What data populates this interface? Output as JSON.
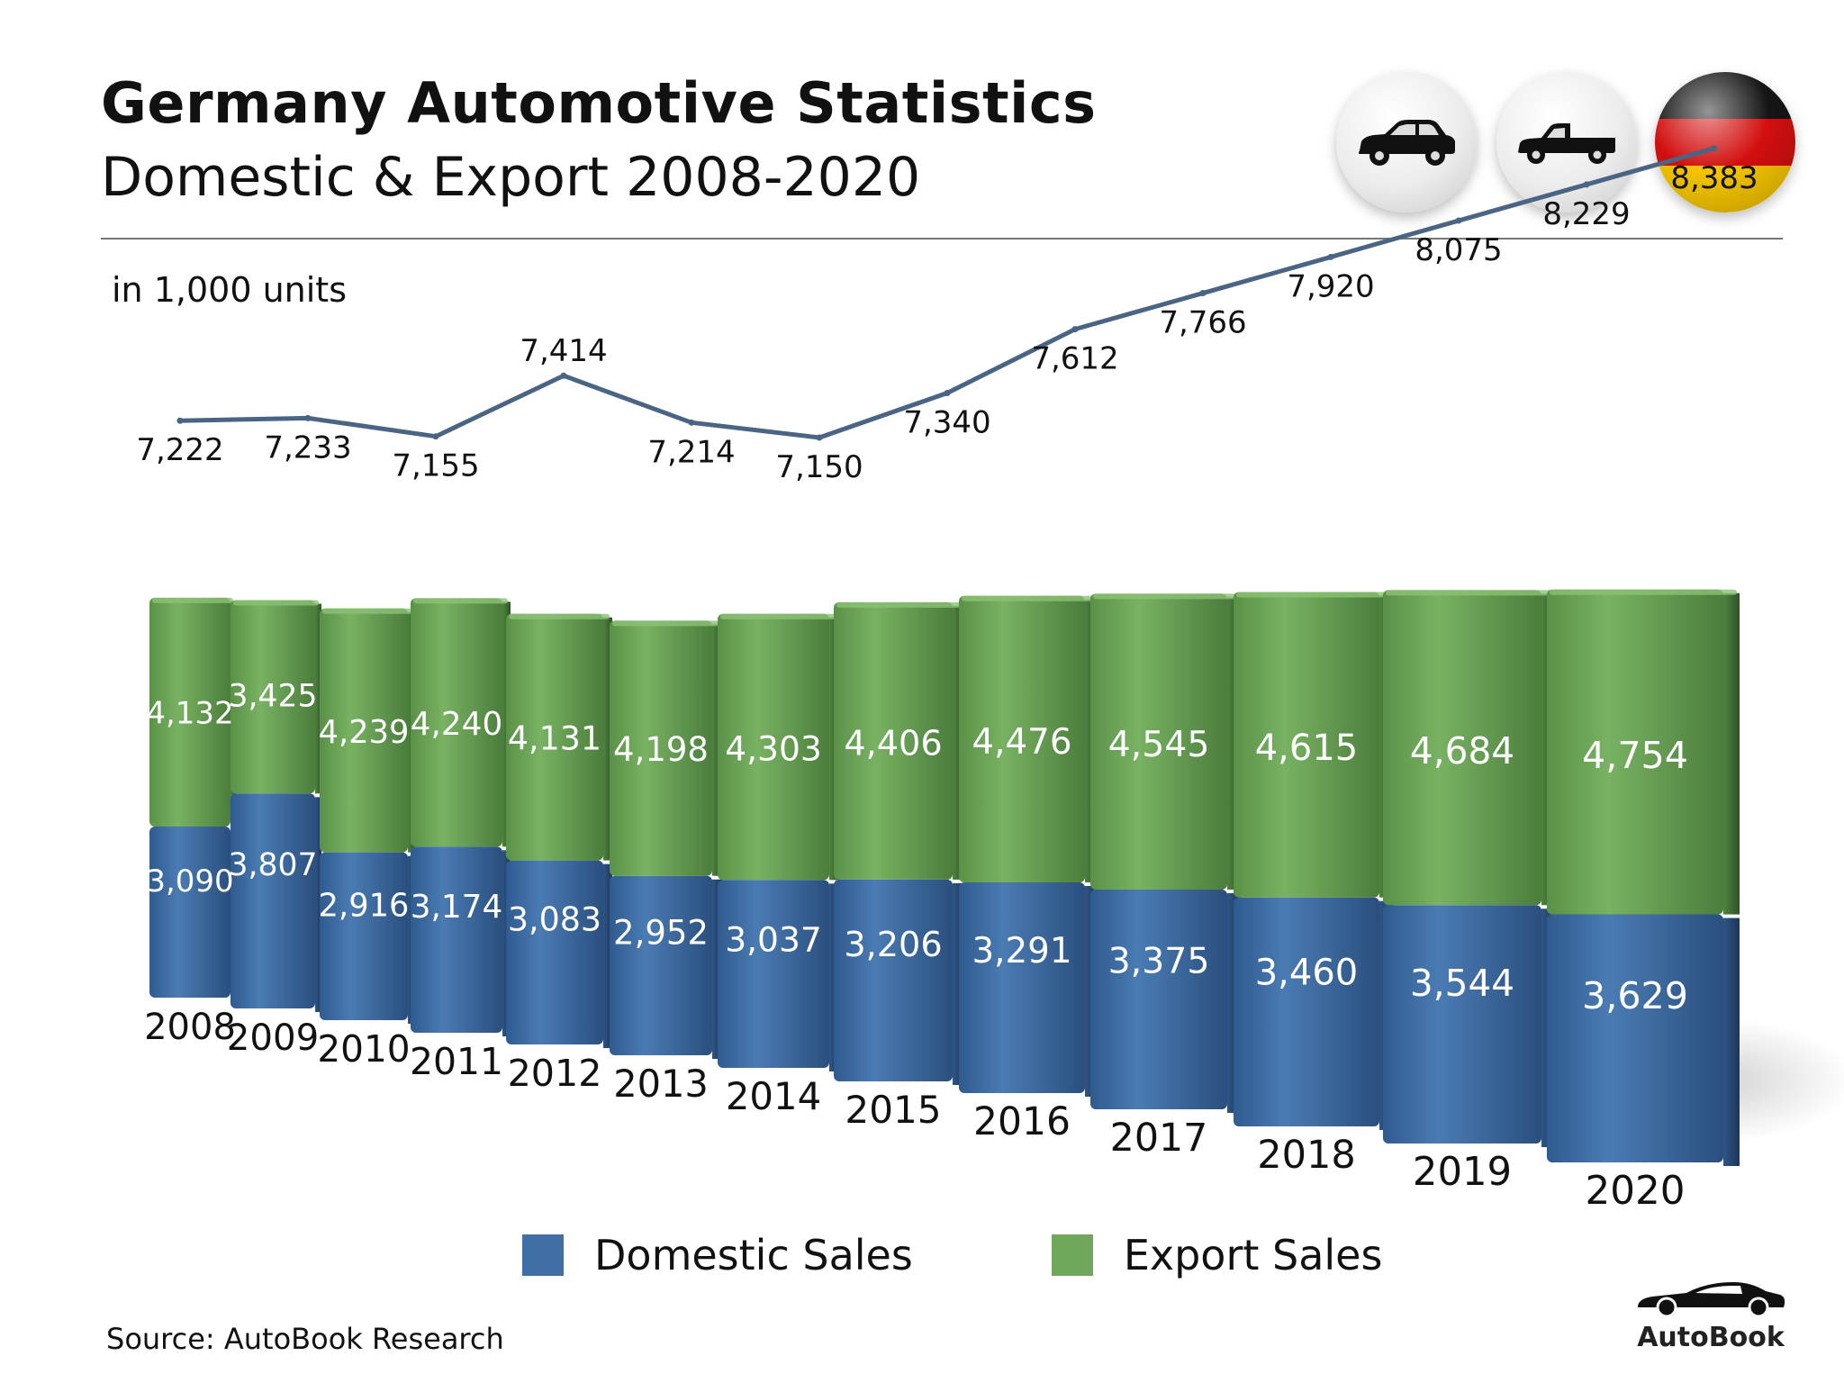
{
  "header": {
    "title": "Germany Automotive Statistics",
    "subtitle": "Domestic & Export 2008-2020"
  },
  "badges": {
    "first_icon": "car-icon",
    "second_icon": "pickup-truck-icon",
    "third_icon": "germany-flag-icon"
  },
  "unit_label": "in 1,000 units",
  "colors": {
    "domestic": "#3f6fa5",
    "export": "#6fa85a",
    "line": "#4a6584"
  },
  "chart_data": {
    "type": "bar",
    "stacked": true,
    "categories": [
      "2008",
      "2009",
      "2010",
      "2011",
      "2012",
      "2013",
      "2014",
      "2015",
      "2016",
      "2017",
      "2018",
      "2019",
      "2020"
    ],
    "series": [
      {
        "name": "Domestic Sales",
        "values": [
          3090,
          3807,
          2916,
          3174,
          3083,
          2952,
          3037,
          3206,
          3291,
          3375,
          3460,
          3544,
          3629
        ]
      },
      {
        "name": "Export Sales",
        "values": [
          4132,
          3425,
          4239,
          4240,
          4131,
          4198,
          4303,
          4406,
          4476,
          4545,
          4615,
          4684,
          4754
        ]
      }
    ],
    "totals": {
      "type": "line",
      "values": [
        7222,
        7233,
        7155,
        7414,
        7214,
        7150,
        7340,
        7612,
        7766,
        7920,
        8075,
        8229,
        8383
      ]
    },
    "value_labels": {
      "domestic": [
        "3,090",
        "3,807",
        "2,916",
        "3,174",
        "3,083",
        "2,952",
        "3,037",
        "3,206",
        "3,291",
        "3,375",
        "3,460",
        "3,544",
        "3,629"
      ],
      "export": [
        "4,132",
        "3,425",
        "4,239",
        "4,240",
        "4,131",
        "4,198",
        "4,303",
        "4,406",
        "4,476",
        "4,545",
        "4,615",
        "4,684",
        "4,754"
      ],
      "totals": [
        "7,222",
        "7,233",
        "7,155",
        "7,414",
        "7,214",
        "7,150",
        "7,340",
        "7,612",
        "7,766",
        "7,920",
        "8,075",
        "8,229",
        "8,383"
      ]
    },
    "legend_position": "bottom",
    "grid": false
  },
  "source": "Source:  AutoBook Research",
  "brand": {
    "name": "AutoBook",
    "icon": "sports-car-icon"
  }
}
